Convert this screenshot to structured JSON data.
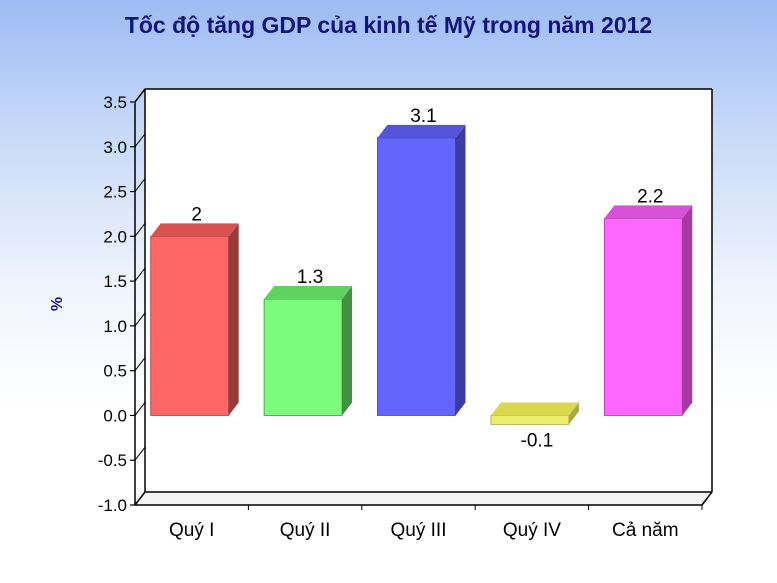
{
  "chart_data": {
    "type": "bar",
    "title": "Tốc độ tăng GDP của kinh tế Mỹ trong năm 2012",
    "xlabel": "",
    "ylabel": "%",
    "categories": [
      "Quý I",
      "Quý II",
      "Quý III",
      "Quý IV",
      "Cả năm"
    ],
    "values": [
      2,
      1.3,
      3.1,
      -0.1,
      2.2
    ],
    "data_labels": [
      "2",
      "1.3",
      "3.1",
      "-0.1",
      "2.2"
    ],
    "ylim": [
      -1.0,
      3.5
    ],
    "yticks": [
      "-1.0",
      "-0.5",
      "0.0",
      "0.5",
      "1.0",
      "1.5",
      "2.0",
      "2.5",
      "3.0",
      "3.5"
    ],
    "grid": false,
    "legend": "none",
    "colors": [
      "#ff6666",
      "#7cfc7c",
      "#6464ff",
      "#ecec6e",
      "#ff66ff"
    ],
    "colors_dark": [
      "#9a3a3a",
      "#3f933f",
      "#3a3aa8",
      "#a8a840",
      "#a53aa5"
    ],
    "colors_top": [
      "#d95252",
      "#5fd35f",
      "#5454d8",
      "#d8d84a",
      "#d852d8"
    ]
  }
}
